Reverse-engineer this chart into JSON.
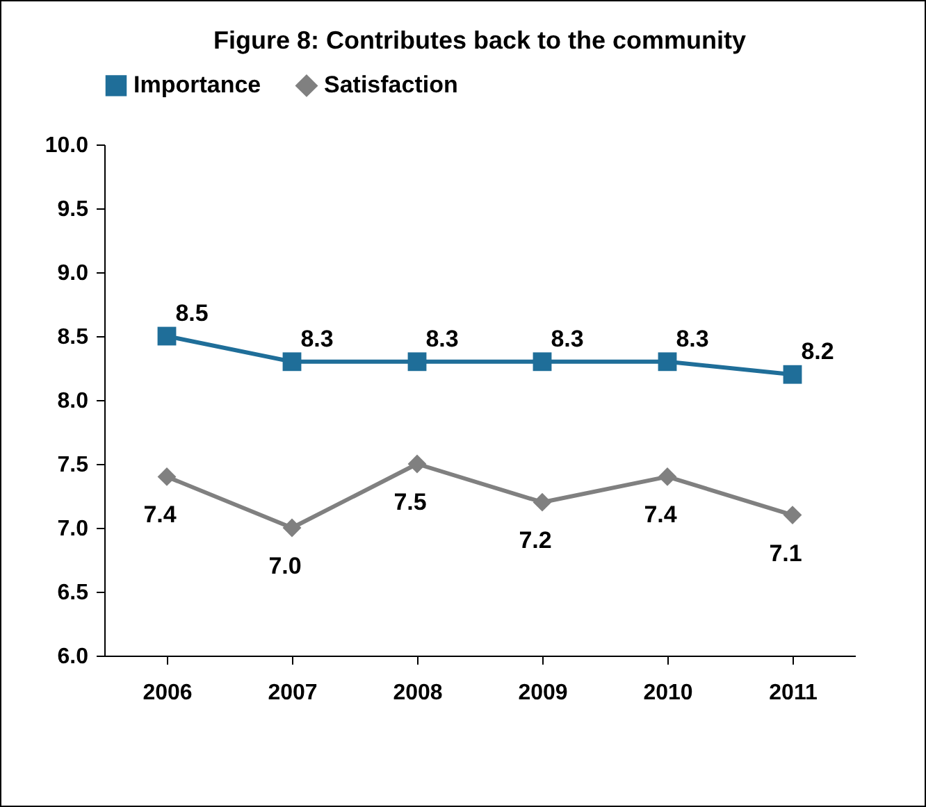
{
  "chart_data": {
    "type": "line",
    "title": "Figure 8: Contributes back to the community",
    "categories": [
      "2006",
      "2007",
      "2008",
      "2009",
      "2010",
      "2011"
    ],
    "series": [
      {
        "name": "Importance",
        "color": "#1f6e99",
        "marker": "square",
        "values": [
          8.5,
          8.3,
          8.3,
          8.3,
          8.3,
          8.2
        ],
        "value_labels": [
          "8.5",
          "8.3",
          "8.3",
          "8.3",
          "8.3",
          "8.2"
        ]
      },
      {
        "name": "Satisfaction",
        "color": "#808080",
        "marker": "diamond",
        "values": [
          7.4,
          7.0,
          7.5,
          7.2,
          7.4,
          7.1
        ],
        "value_labels": [
          "7.4",
          "7.0",
          "7.5",
          "7.2",
          "7.4",
          "7.1"
        ]
      }
    ],
    "ylim": [
      6,
      10
    ],
    "yticks": [
      {
        "value": 6,
        "label": "6.0"
      },
      {
        "value": 6.5,
        "label": "6.5"
      },
      {
        "value": 7,
        "label": "7.0"
      },
      {
        "value": 7.5,
        "label": "7.5"
      },
      {
        "value": 8,
        "label": "8.0"
      },
      {
        "value": 8.5,
        "label": "8.5"
      },
      {
        "value": 9,
        "label": "9.0"
      },
      {
        "value": 9.5,
        "label": "9.5"
      },
      {
        "value": 10,
        "label": "10.0"
      }
    ],
    "grid": false,
    "legend": "top",
    "line_style": "solid"
  }
}
